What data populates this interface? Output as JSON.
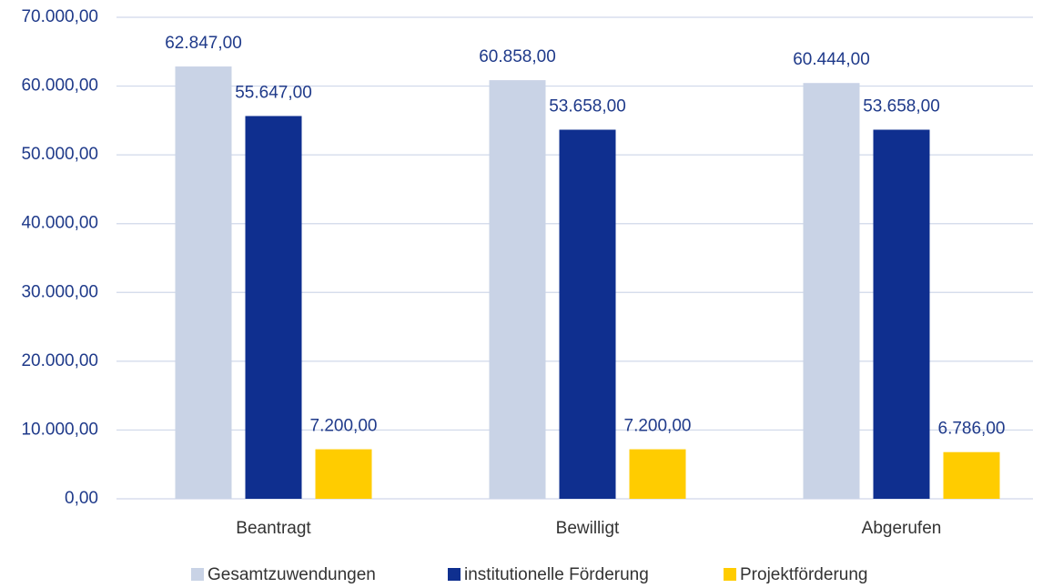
{
  "chart_data": {
    "type": "bar",
    "categories": [
      "Beantragt",
      "Bewilligt",
      "Abgerufen"
    ],
    "series": [
      {
        "name": "Gesamtzuwendungen",
        "color": "#c9d3e6",
        "values": [
          62847,
          60858,
          60444
        ],
        "value_labels": [
          "62.847,00",
          "60.858,00",
          "60.444,00"
        ]
      },
      {
        "name": "institutionelle Förderung",
        "color": "#0f2f8f",
        "values": [
          55647,
          53658,
          53658
        ],
        "value_labels": [
          "55.647,00",
          "53.658,00",
          "53.658,00"
        ]
      },
      {
        "name": "Projektförderung",
        "color": "#ffcc00",
        "values": [
          7200,
          7200,
          6786
        ],
        "value_labels": [
          "7.200,00",
          "7.200,00",
          "6.786,00"
        ]
      }
    ],
    "ylim": [
      0,
      70000
    ],
    "yticks": [
      {
        "value": 0,
        "label": "0,00"
      },
      {
        "value": 10000,
        "label": "10.000,00"
      },
      {
        "value": 20000,
        "label": "20.000,00"
      },
      {
        "value": 30000,
        "label": "30.000,00"
      },
      {
        "value": 40000,
        "label": "40.000,00"
      },
      {
        "value": 50000,
        "label": "50.000,00"
      },
      {
        "value": 60000,
        "label": "60.000,00"
      },
      {
        "value": 70000,
        "label": "70.000,00"
      }
    ],
    "grid": true,
    "legend": "bottom"
  }
}
